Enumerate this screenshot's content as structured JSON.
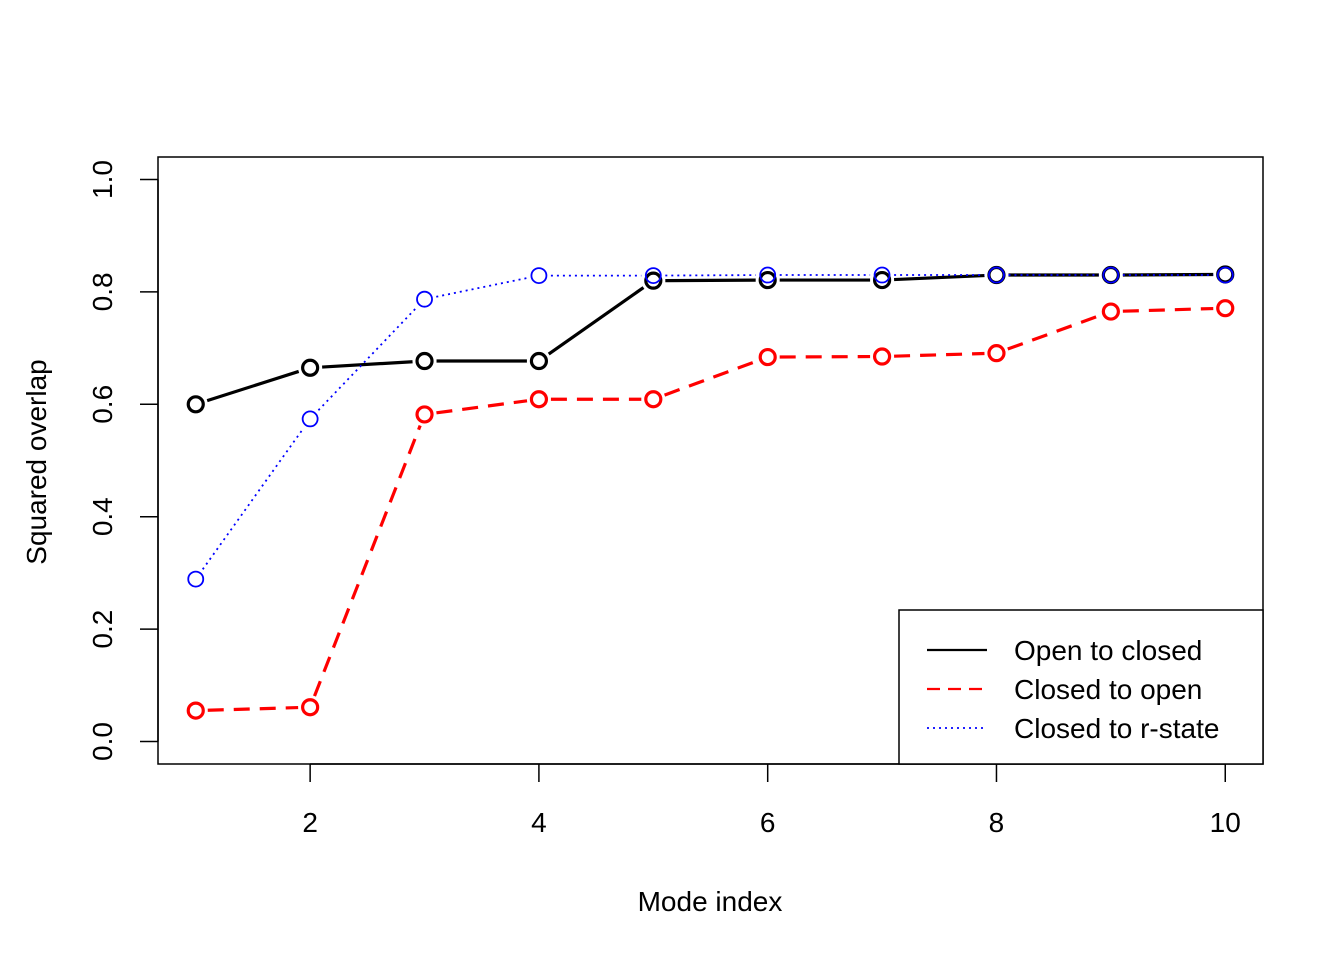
{
  "chart_data": {
    "type": "line",
    "title": "",
    "xlabel": "Mode index",
    "ylabel": "Squared overlap",
    "xlim": [
      0.67,
      10.33
    ],
    "ylim": [
      -0.04,
      1.04
    ],
    "xticks": [
      2,
      4,
      6,
      8,
      10
    ],
    "yticks": [
      0.0,
      0.2,
      0.4,
      0.6,
      0.8,
      1.0
    ],
    "xtick_labels": [
      "2",
      "4",
      "6",
      "8",
      "10"
    ],
    "ytick_labels": [
      "0.0",
      "0.2",
      "0.4",
      "0.6",
      "0.8",
      "1.0"
    ],
    "grid": false,
    "legend_position": "bottom-right",
    "x": [
      1,
      2,
      3,
      4,
      5,
      6,
      7,
      8,
      9,
      10
    ],
    "series": [
      {
        "name": "Open to closed",
        "color": "#000000",
        "line_style": "solid",
        "values": [
          0.6,
          0.665,
          0.677,
          0.677,
          0.82,
          0.821,
          0.821,
          0.83,
          0.83,
          0.831
        ]
      },
      {
        "name": "Closed to open",
        "color": "#ff0000",
        "line_style": "dashed",
        "values": [
          0.055,
          0.061,
          0.582,
          0.609,
          0.609,
          0.684,
          0.685,
          0.691,
          0.765,
          0.771
        ]
      },
      {
        "name": "Closed to r-state",
        "color": "#0000ff",
        "line_style": "dotted",
        "values": [
          0.289,
          0.574,
          0.787,
          0.829,
          0.829,
          0.83,
          0.83,
          0.83,
          0.83,
          0.83
        ]
      }
    ]
  }
}
